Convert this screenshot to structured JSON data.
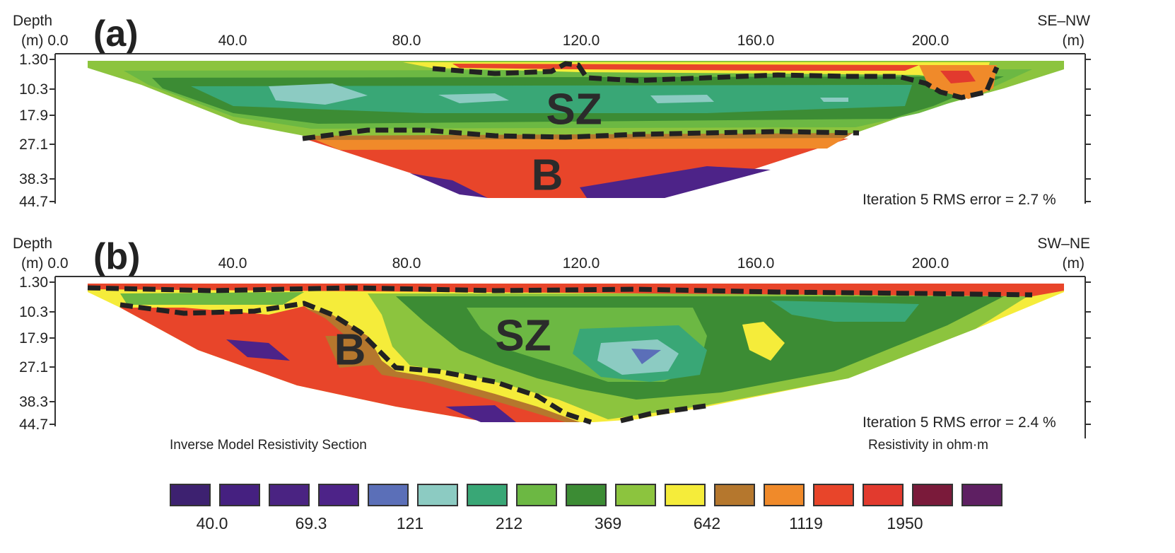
{
  "panels": [
    {
      "id": "a",
      "label": "(a)",
      "depth_title": "Depth",
      "depth_unit": "(m)",
      "direction": "SE–NW",
      "direction_unit": "(m)",
      "x_ticks": [
        "0.0",
        "40.0",
        "80.0",
        "120.0",
        "160.0",
        "200.0"
      ],
      "y_ticks": [
        "1.30",
        "10.3",
        "17.9",
        "27.1",
        "38.3",
        "44.7"
      ],
      "rms": "Iteration 5 RMS error = 2.7 %",
      "zones": [
        "SZ",
        "B"
      ]
    },
    {
      "id": "b",
      "label": "(b)",
      "depth_title": "Depth",
      "depth_unit": "(m)",
      "direction": "SW–NE",
      "direction_unit": "(m)",
      "x_ticks": [
        "0.0",
        "40.0",
        "80.0",
        "120.0",
        "160.0",
        "200.0"
      ],
      "y_ticks": [
        "1.30",
        "10.3",
        "17.9",
        "27.1",
        "38.3",
        "44.7"
      ],
      "rms": "Iteration 5 RMS error = 2.4 %",
      "zones": [
        "SZ",
        "B"
      ]
    }
  ],
  "legend": {
    "title_left": "Inverse Model Resistivity Section",
    "title_right": "Resistivity in ohm·m",
    "colors": [
      "#3d2170",
      "#452080",
      "#4a2382",
      "#4d2388",
      "#5b6fb8",
      "#8ccbc2",
      "#39a776",
      "#6cb843",
      "#3c8c34",
      "#8cc43e",
      "#f5ec3a",
      "#b5772d",
      "#f08a2a",
      "#e8452a",
      "#e23a2e",
      "#7a1a3a",
      "#5e1f62"
    ],
    "values": [
      "40.0",
      "69.3",
      "121",
      "212",
      "369",
      "642",
      "1119",
      "1950"
    ]
  },
  "chart_data": [
    {
      "type": "heatmap",
      "title": "(a)",
      "xlabel": "(m)",
      "ylabel": "Depth (m)",
      "orientation_label": "SE–NW",
      "x_ticks": [
        0.0,
        40.0,
        80.0,
        120.0,
        160.0,
        200.0
      ],
      "y_ticks": [
        1.3,
        10.3,
        17.9,
        27.1,
        38.3,
        44.7
      ],
      "xlim": [
        0,
        228
      ],
      "ylim": [
        44.7,
        1.3
      ],
      "annotations": [
        "SZ",
        "B",
        "Iteration 5 RMS error = 2.7 %"
      ],
      "rms_error_percent": 2.7,
      "iteration": 5
    },
    {
      "type": "heatmap",
      "title": "(b)",
      "xlabel": "(m)",
      "ylabel": "Depth (m)",
      "orientation_label": "SW–NE",
      "x_ticks": [
        0.0,
        40.0,
        80.0,
        120.0,
        160.0,
        200.0
      ],
      "y_ticks": [
        1.3,
        10.3,
        17.9,
        27.1,
        38.3,
        44.7
      ],
      "xlim": [
        0,
        228
      ],
      "ylim": [
        44.7,
        1.3
      ],
      "annotations": [
        "SZ",
        "B",
        "Iteration 5 RMS error = 2.4 %"
      ],
      "rms_error_percent": 2.4,
      "iteration": 5
    }
  ]
}
